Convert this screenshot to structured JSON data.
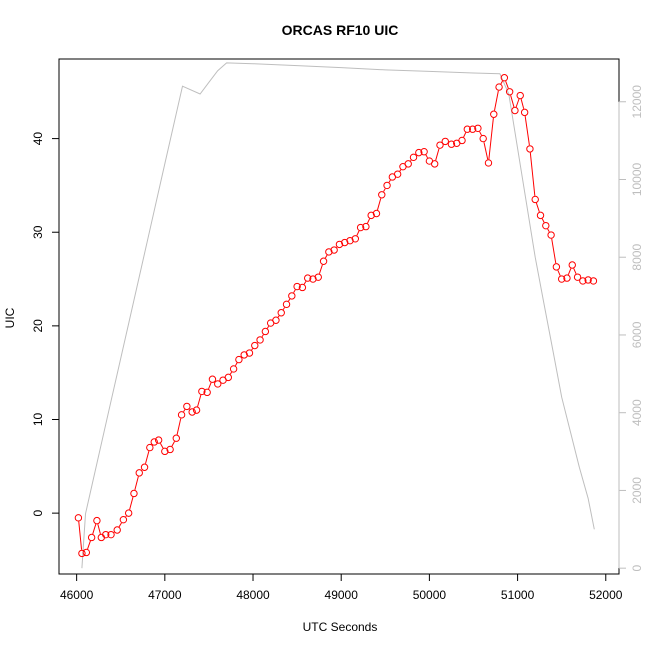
{
  "chart_data": {
    "type": "line",
    "title": "ORCAS RF10 UIC",
    "xlabel": "UTC Seconds",
    "ylabel": "UIC",
    "xlim": [
      45800,
      52150
    ],
    "ylim": [
      -6.5,
      48.5
    ],
    "ylim_right": [
      -150,
      13100
    ],
    "x_ticks": [
      46000,
      47000,
      48000,
      49000,
      50000,
      51000,
      52000
    ],
    "y_ticks": [
      0,
      10,
      20,
      30,
      40
    ],
    "y_ticks_right": [
      0,
      2000,
      4000,
      6000,
      8000,
      10000,
      12000
    ],
    "grid": false,
    "colors": {
      "uic": "#ff0000",
      "altitude": "#bebebe",
      "frame": "#000000"
    },
    "series": [
      {
        "axis": "left",
        "style": "points-with-line",
        "x": [
          46020,
          46060,
          46110,
          46170,
          46230,
          46280,
          46330,
          46390,
          46460,
          46530,
          46590,
          46650,
          46710,
          46770,
          46830,
          46880,
          46930,
          47000,
          47060,
          47130,
          47190,
          47250,
          47310,
          47360,
          47420,
          47480,
          47540,
          47600,
          47660,
          47720,
          47780,
          47840,
          47900,
          47960,
          48020,
          48080,
          48140,
          48200,
          48260,
          48320,
          48380,
          48440,
          48500,
          48560,
          48620,
          48680,
          48740,
          48800,
          48860,
          48920,
          48980,
          49040,
          49100,
          49160,
          49220,
          49280,
          49340,
          49400,
          49460,
          49520,
          49580,
          49640,
          49700,
          49760,
          49820,
          49880,
          49940,
          50000,
          50060,
          50120,
          50180,
          50250,
          50310,
          50370,
          50430,
          50490,
          50550,
          50610,
          50670,
          50730,
          50790,
          50850,
          50910,
          50970,
          51030,
          51080,
          51140,
          51200,
          51260,
          51320,
          51380,
          51440,
          51500,
          51560,
          51620,
          51680,
          51740,
          51800,
          51860
        ],
        "y": [
          -0.5,
          -4.3,
          -4.2,
          -2.6,
          -0.8,
          -2.6,
          -2.3,
          -2.3,
          -1.8,
          -0.7,
          0.0,
          2.1,
          4.3,
          4.9,
          7.0,
          7.6,
          7.8,
          6.6,
          6.8,
          8.0,
          10.5,
          11.4,
          10.8,
          11.0,
          13.0,
          12.9,
          14.3,
          13.8,
          14.2,
          14.5,
          15.4,
          16.4,
          16.9,
          17.1,
          17.9,
          18.5,
          19.4,
          20.3,
          20.6,
          21.4,
          22.3,
          23.2,
          24.2,
          24.1,
          25.1,
          25.0,
          25.2,
          26.9,
          27.9,
          28.1,
          28.7,
          28.9,
          29.1,
          29.3,
          30.5,
          30.6,
          31.8,
          32.0,
          34.0,
          35.0,
          35.9,
          36.2,
          37.0,
          37.3,
          38.0,
          38.5,
          38.6,
          37.6,
          37.3,
          39.3,
          39.7,
          39.4,
          39.5,
          39.8,
          41.0,
          41.0,
          41.1,
          40.0,
          37.4,
          42.6,
          45.5,
          46.5,
          45.0,
          43.0,
          44.6,
          42.8,
          38.9,
          33.5,
          31.8,
          30.7,
          29.7,
          26.3,
          25.0,
          25.1,
          26.5,
          25.2,
          24.8,
          24.9,
          24.8
        ]
      },
      {
        "axis": "right",
        "style": "line",
        "x": [
          46060,
          46100,
          46200,
          46400,
          46600,
          46800,
          47000,
          47200,
          47400,
          47500,
          47600,
          47700,
          48000,
          48500,
          49000,
          49500,
          50000,
          50500,
          50800,
          50900,
          51000,
          51100,
          51200,
          51300,
          51400,
          51500,
          51600,
          51700,
          51800,
          51870
        ],
        "y": [
          0,
          1400,
          2400,
          4400,
          6400,
          8400,
          10400,
          12400,
          12200,
          12500,
          12800,
          13000,
          12980,
          12930,
          12880,
          12820,
          12780,
          12740,
          12720,
          12200,
          10800,
          9400,
          8000,
          6800,
          5600,
          4400,
          3500,
          2600,
          1800,
          1000
        ]
      }
    ]
  }
}
